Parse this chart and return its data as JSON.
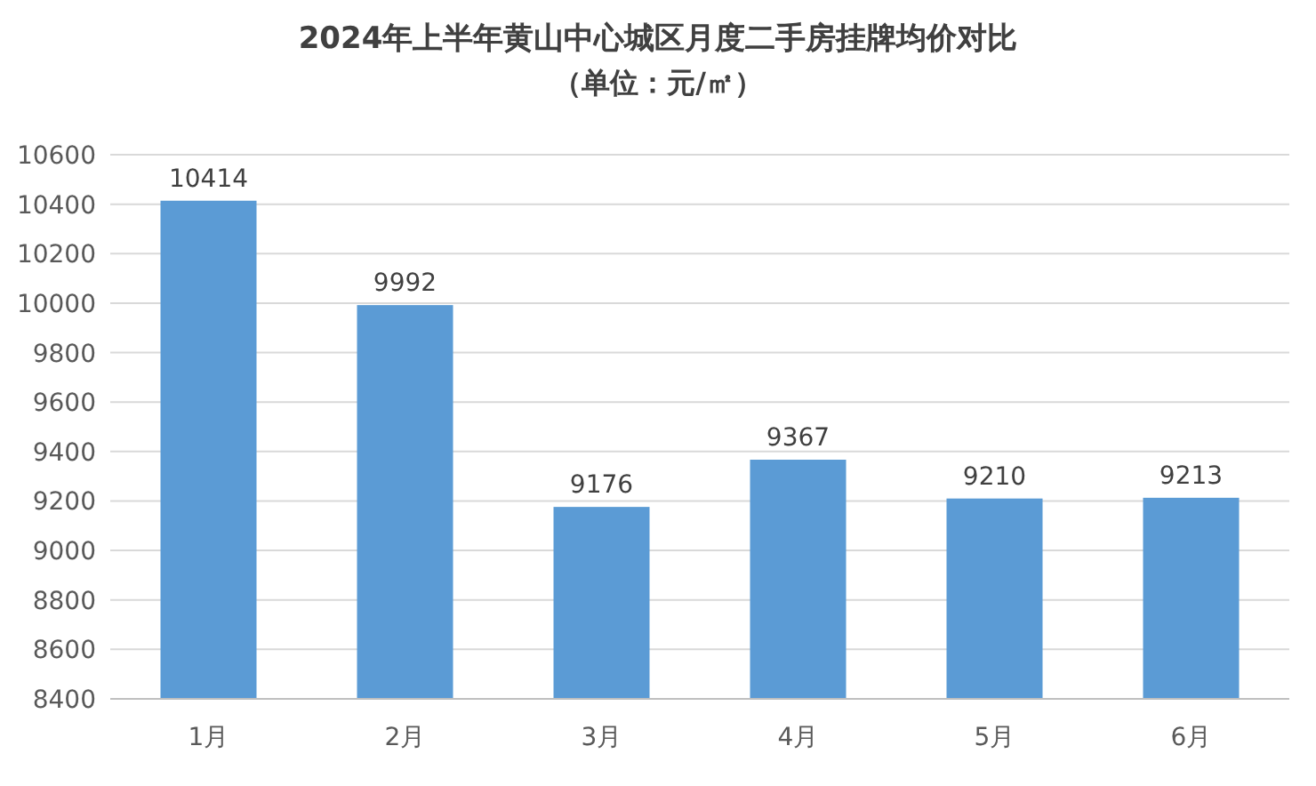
{
  "chart_data": {
    "type": "bar",
    "title": "2024年上半年黄山中心城区月度二手房挂牌均价对比",
    "subtitle": "（单位：元/㎡）",
    "categories": [
      "1月",
      "2月",
      "3月",
      "4月",
      "5月",
      "6月"
    ],
    "values": [
      10414,
      9992,
      9176,
      9367,
      9210,
      9213
    ],
    "color": "#5b9bd5",
    "ylim": [
      8400,
      10600
    ],
    "yticks": [
      8400,
      8600,
      8800,
      9000,
      9200,
      9400,
      9600,
      9800,
      10000,
      10200,
      10400,
      10600
    ],
    "grid": "y",
    "data_labels": true
  }
}
